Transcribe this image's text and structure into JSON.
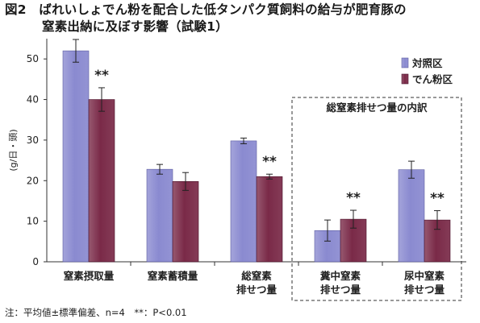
{
  "title": {
    "line1": "図2　ばれいしょでん粉を配合した低タンパク質飼料の給与が肥育豚の",
    "line2": "窒素出納に及ぼす影響（試験1）"
  },
  "footnote": "注：平均値±標準偏差、n=4　**：P<0.01",
  "colors": {
    "control": "#8a8ad0",
    "starch": "#7a2a48"
  },
  "chart_data": {
    "type": "bar",
    "ylabel": "(g/日・頭)",
    "ylim": [
      0,
      55
    ],
    "yticks": [
      0,
      10,
      20,
      30,
      40,
      50
    ],
    "categories": [
      {
        "line1": "窒素摂取量",
        "line2": ""
      },
      {
        "line1": "窒素蓄積量",
        "line2": ""
      },
      {
        "line1": "総窒素",
        "line2": "排せつ量"
      },
      {
        "line1": "糞中窒素",
        "line2": "排せつ量"
      },
      {
        "line1": "尿中窒素",
        "line2": "排せつ量"
      }
    ],
    "series": [
      {
        "name": "対照区",
        "values": [
          52.0,
          22.8,
          29.8,
          7.7,
          22.7
        ],
        "errors": [
          2.8,
          1.2,
          0.7,
          2.6,
          2.1
        ]
      },
      {
        "name": "でん粉区",
        "values": [
          40.0,
          19.8,
          21.0,
          10.5,
          10.3
        ],
        "errors": [
          2.9,
          2.2,
          0.6,
          2.2,
          2.3
        ]
      }
    ],
    "significance": [
      "**",
      "",
      "**",
      "**",
      "**"
    ],
    "box_title": "総窒素排せつ量の内訳"
  }
}
